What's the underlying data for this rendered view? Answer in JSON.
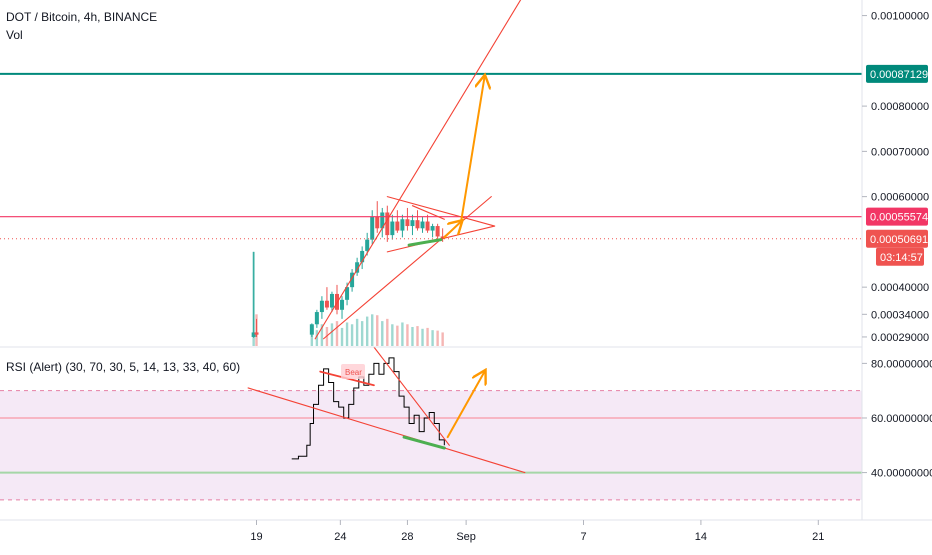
{
  "header": {
    "symbol": "DOT / Bitcoin, 4h, BINANCE",
    "volume_label": "Vol",
    "rsi_label": "RSI (Alert) (30, 70, 30, 5, 14, 13, 33, 40, 60)",
    "bear_tag": "Bear"
  },
  "price_axis": {
    "ticks": [
      {
        "label": "0.00100000",
        "value": 0.001
      },
      {
        "label": "0.00080000",
        "value": 0.0008
      },
      {
        "label": "0.00070000",
        "value": 0.0007
      },
      {
        "label": "0.00060000",
        "value": 0.0006
      },
      {
        "label": "0.00040000",
        "value": 0.0004
      },
      {
        "label": "0.00034000",
        "value": 0.00034
      },
      {
        "label": "0.00029000",
        "value": 0.00029
      }
    ],
    "badges": {
      "target": {
        "label": "0.00087129",
        "value": 0.00087129,
        "color": "#00897b"
      },
      "resistance": {
        "label": "0.00055574",
        "value": 0.00055574,
        "color": "#f23665"
      },
      "last": {
        "label": "0.00050691",
        "value": 0.00050691,
        "color": "#ef5350"
      },
      "countdown": {
        "label": "03:14:57",
        "color": "#ef5350"
      }
    }
  },
  "rsi_axis": {
    "ticks": [
      {
        "label": "80.00000000",
        "value": 80
      },
      {
        "label": "60.00000000",
        "value": 60
      },
      {
        "label": "40.00000000",
        "value": 40
      }
    ]
  },
  "time_axis": {
    "ticks": [
      {
        "label": "19",
        "day": 19
      },
      {
        "label": "24",
        "day": 24
      },
      {
        "label": "28",
        "day": 28
      },
      {
        "label": "Sep",
        "day": 31.5
      },
      {
        "label": "7",
        "day": 38.5
      },
      {
        "label": "14",
        "day": 45.5
      },
      {
        "label": "21",
        "day": 52.5
      }
    ]
  },
  "colors": {
    "up": "#26a69a",
    "down": "#ef5350",
    "trend": "#f44336",
    "arrow": "#ff9800",
    "support": "#4caf50",
    "rsi_band": "#f3e5f5",
    "rsi_line": "#000000"
  },
  "chart_data": {
    "type": "candlestick",
    "title": "DOT / Bitcoin, 4h, BINANCE",
    "price_ylim": [
      0.00027,
      0.00103
    ],
    "rsi_ylim": [
      23,
      86
    ],
    "price_lines": {
      "target": 0.00087129,
      "resistance": 0.00055574,
      "last": 0.00050691
    },
    "rsi_levels": {
      "upper_band": 70,
      "lower_band": 30,
      "mid": 60,
      "low": 40
    },
    "candles": [
      {
        "day": 18.83,
        "o": 0.00029,
        "h": 0.000478,
        "l": 0.000288,
        "c": 0.0003,
        "v": 0.000478
      },
      {
        "day": 19.0,
        "o": 0.0003,
        "h": 0.00033,
        "l": 0.00029,
        "c": 0.000295,
        "v": 0.00034
      },
      {
        "day": 22.3,
        "o": 0.000295,
        "h": 0.00032,
        "l": 0.00029,
        "c": 0.000318,
        "v": 0.000295
      },
      {
        "day": 22.6,
        "o": 0.000318,
        "h": 0.00035,
        "l": 0.00031,
        "c": 0.000345,
        "v": 0.000305
      },
      {
        "day": 22.9,
        "o": 0.000345,
        "h": 0.00038,
        "l": 0.00033,
        "c": 0.00037,
        "v": 0.000318
      },
      {
        "day": 23.2,
        "o": 0.00037,
        "h": 0.0004,
        "l": 0.00035,
        "c": 0.000355,
        "v": 0.000312
      },
      {
        "day": 23.5,
        "o": 0.000355,
        "h": 0.00039,
        "l": 0.000345,
        "c": 0.000385,
        "v": 0.00032
      },
      {
        "day": 23.8,
        "o": 0.000385,
        "h": 0.000405,
        "l": 0.00034,
        "c": 0.00035,
        "v": 0.000325
      },
      {
        "day": 24.1,
        "o": 0.00035,
        "h": 0.00038,
        "l": 0.00033,
        "c": 0.000372,
        "v": 0.00031
      },
      {
        "day": 24.4,
        "o": 0.000372,
        "h": 0.00041,
        "l": 0.00036,
        "c": 0.0004,
        "v": 0.000322
      },
      {
        "day": 24.7,
        "o": 0.0004,
        "h": 0.00044,
        "l": 0.00039,
        "c": 0.000432,
        "v": 0.000318
      },
      {
        "day": 25.0,
        "o": 0.000432,
        "h": 0.000465,
        "l": 0.000425,
        "c": 0.000455,
        "v": 0.00033
      },
      {
        "day": 25.3,
        "o": 0.000455,
        "h": 0.00049,
        "l": 0.00044,
        "c": 0.00048,
        "v": 0.000325
      },
      {
        "day": 25.6,
        "o": 0.00048,
        "h": 0.00052,
        "l": 0.00047,
        "c": 0.000505,
        "v": 0.000335
      },
      {
        "day": 25.9,
        "o": 0.000505,
        "h": 0.00057,
        "l": 0.000495,
        "c": 0.000555,
        "v": 0.00034
      },
      {
        "day": 26.2,
        "o": 0.000555,
        "h": 0.00059,
        "l": 0.00052,
        "c": 0.00053,
        "v": 0.000338
      },
      {
        "day": 26.5,
        "o": 0.00053,
        "h": 0.000575,
        "l": 0.00051,
        "c": 0.000565,
        "v": 0.000325
      },
      {
        "day": 26.8,
        "o": 0.000565,
        "h": 0.00058,
        "l": 0.0005,
        "c": 0.000515,
        "v": 0.00033
      },
      {
        "day": 27.1,
        "o": 0.000515,
        "h": 0.00056,
        "l": 0.000505,
        "c": 0.000545,
        "v": 0.000318
      },
      {
        "day": 27.4,
        "o": 0.000545,
        "h": 0.00057,
        "l": 0.00052,
        "c": 0.000525,
        "v": 0.000315
      },
      {
        "day": 27.7,
        "o": 0.000525,
        "h": 0.00056,
        "l": 0.00051,
        "c": 0.00055,
        "v": 0.000322
      },
      {
        "day": 28.0,
        "o": 0.00055,
        "h": 0.000575,
        "l": 0.000525,
        "c": 0.000535,
        "v": 0.000318
      },
      {
        "day": 28.3,
        "o": 0.000535,
        "h": 0.00056,
        "l": 0.000515,
        "c": 0.000548,
        "v": 0.000312
      },
      {
        "day": 28.6,
        "o": 0.000548,
        "h": 0.00057,
        "l": 0.000525,
        "c": 0.00053,
        "v": 0.000314
      },
      {
        "day": 28.9,
        "o": 0.00053,
        "h": 0.000555,
        "l": 0.00052,
        "c": 0.000545,
        "v": 0.000308
      },
      {
        "day": 29.2,
        "o": 0.000545,
        "h": 0.00056,
        "l": 0.00052,
        "c": 0.000525,
        "v": 0.00031
      },
      {
        "day": 29.5,
        "o": 0.000525,
        "h": 0.00054,
        "l": 0.00051,
        "c": 0.000535,
        "v": 0.000305
      },
      {
        "day": 29.8,
        "o": 0.000535,
        "h": 0.00054,
        "l": 0.000505,
        "c": 0.000512,
        "v": 0.000304
      },
      {
        "day": 30.1,
        "o": 0.000512,
        "h": 0.00053,
        "l": 0.0005,
        "c": 0.000507,
        "v": 0.0003
      }
    ],
    "rsi": [
      {
        "day": 21.1,
        "v": 45
      },
      {
        "day": 21.5,
        "v": 46
      },
      {
        "day": 22.0,
        "v": 50
      },
      {
        "day": 22.2,
        "v": 58
      },
      {
        "day": 22.4,
        "v": 65
      },
      {
        "day": 22.7,
        "v": 72
      },
      {
        "day": 23.0,
        "v": 78
      },
      {
        "day": 23.3,
        "v": 73
      },
      {
        "day": 23.6,
        "v": 66
      },
      {
        "day": 23.9,
        "v": 64
      },
      {
        "day": 24.2,
        "v": 60
      },
      {
        "day": 24.5,
        "v": 65
      },
      {
        "day": 24.8,
        "v": 71
      },
      {
        "day": 25.1,
        "v": 75
      },
      {
        "day": 25.4,
        "v": 72
      },
      {
        "day": 25.7,
        "v": 76
      },
      {
        "day": 26.0,
        "v": 80
      },
      {
        "day": 26.3,
        "v": 76
      },
      {
        "day": 26.6,
        "v": 80
      },
      {
        "day": 26.9,
        "v": 82
      },
      {
        "day": 27.2,
        "v": 77
      },
      {
        "day": 27.5,
        "v": 68
      },
      {
        "day": 27.8,
        "v": 64
      },
      {
        "day": 28.1,
        "v": 58
      },
      {
        "day": 28.4,
        "v": 61
      },
      {
        "day": 28.7,
        "v": 55
      },
      {
        "day": 29.0,
        "v": 60
      },
      {
        "day": 29.3,
        "v": 62
      },
      {
        "day": 29.6,
        "v": 58
      },
      {
        "day": 29.9,
        "v": 52
      },
      {
        "day": 30.2,
        "v": 50
      }
    ],
    "drawings": {
      "price": [
        {
          "kind": "line",
          "color": "trend",
          "p1": {
            "day": 22.5,
            "p": 0.000286
          },
          "p2": {
            "day": 35.0,
            "p": 0.00105
          }
        },
        {
          "kind": "line",
          "color": "trend",
          "p1": {
            "day": 23.0,
            "p": 0.000286
          },
          "p2": {
            "day": 33.0,
            "p": 0.0006
          }
        },
        {
          "kind": "line",
          "color": "trend",
          "p1": {
            "day": 26.8,
            "p": 0.0006
          },
          "p2": {
            "day": 33.2,
            "p": 0.000535
          }
        },
        {
          "kind": "line",
          "color": "trend",
          "p1": {
            "day": 26.8,
            "p": 0.000478
          },
          "p2": {
            "day": 33.2,
            "p": 0.000535
          }
        },
        {
          "kind": "line",
          "color": "trend",
          "p1": {
            "day": 30.2,
            "p": 0.00055
          },
          "p2": {
            "day": 28.3,
            "p": 0.00058
          }
        },
        {
          "kind": "line",
          "color": "support",
          "width": 3,
          "p1": {
            "day": 28.1,
            "p": 0.000493
          },
          "p2": {
            "day": 30.0,
            "p": 0.000505
          }
        },
        {
          "kind": "arrow",
          "color": "arrow",
          "p1": {
            "day": 30.2,
            "p": 0.00051
          },
          "p2": {
            "day": 31.2,
            "p": 0.000545
          }
        },
        {
          "kind": "arrow",
          "color": "arrow",
          "p1": {
            "day": 31.2,
            "p": 0.000545
          },
          "p2": {
            "day": 32.6,
            "p": 0.000865
          }
        }
      ],
      "rsi": [
        {
          "kind": "line",
          "color": "trend",
          "p1": {
            "day": 18.5,
            "v": 71
          },
          "p2": {
            "day": 35.0,
            "v": 40
          }
        },
        {
          "kind": "line",
          "color": "trend",
          "p1": {
            "day": 26.0,
            "v": 86
          },
          "p2": {
            "day": 30.5,
            "v": 50
          }
        },
        {
          "kind": "line",
          "color": "trend",
          "width": 1.8,
          "p1": {
            "day": 22.8,
            "v": 77
          },
          "p2": {
            "day": 26.0,
            "v": 72
          }
        },
        {
          "kind": "line",
          "color": "support",
          "width": 3,
          "p1": {
            "day": 27.8,
            "v": 53
          },
          "p2": {
            "day": 30.2,
            "v": 49
          }
        },
        {
          "kind": "arrow",
          "color": "arrow",
          "p1": {
            "day": 30.4,
            "v": 53
          },
          "p2": {
            "day": 32.6,
            "v": 77
          }
        }
      ]
    }
  }
}
